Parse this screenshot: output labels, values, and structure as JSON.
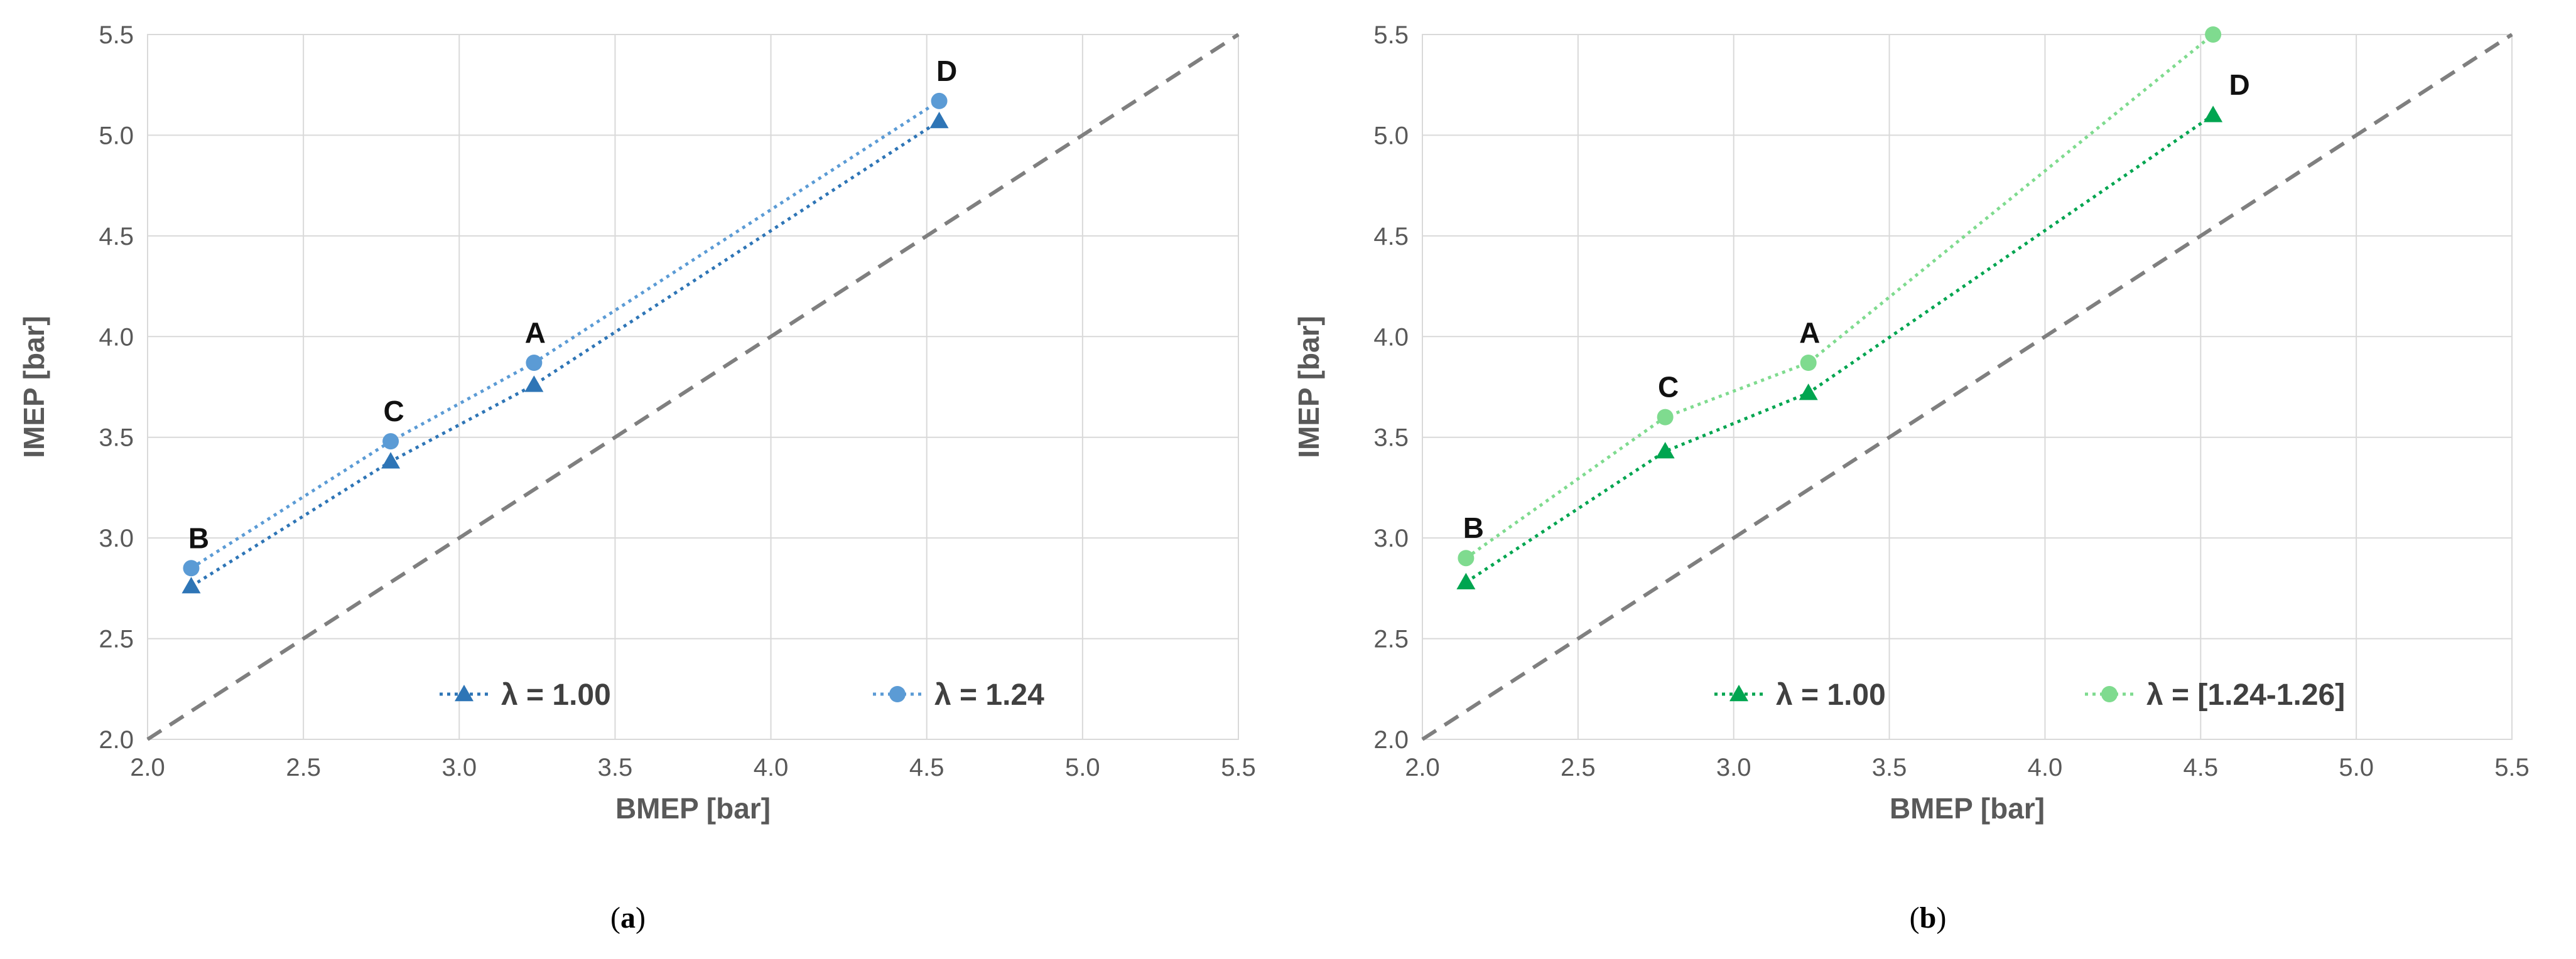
{
  "chart_data": [
    {
      "type": "line",
      "panel_label": "a",
      "xlabel": "BMEP [bar]",
      "ylabel": "IMEP [bar]",
      "xlim": [
        2.0,
        5.5
      ],
      "ylim": [
        2.0,
        5.5
      ],
      "xticks": [
        "2.0",
        "2.5",
        "3.0",
        "3.5",
        "4.0",
        "4.5",
        "5.0",
        "5.5"
      ],
      "yticks": [
        "2.0",
        "2.5",
        "3.0",
        "3.5",
        "4.0",
        "4.5",
        "5.0",
        "5.5"
      ],
      "grid": true,
      "reference_line": "y = x (dashed)",
      "legend_position": "bottom-inside",
      "point_labels": [
        "B",
        "C",
        "A",
        "D"
      ],
      "series": [
        {
          "name": "λ = 1.00",
          "marker": "triangle",
          "color": "#2E75B6",
          "x": [
            2.14,
            2.78,
            3.24,
            4.54
          ],
          "y": [
            2.76,
            3.38,
            3.76,
            5.07
          ]
        },
        {
          "name": "λ = 1.24",
          "marker": "circle",
          "color": "#5B9BD5",
          "x": [
            2.14,
            2.78,
            3.24,
            4.54
          ],
          "y": [
            2.85,
            3.48,
            3.87,
            5.17
          ]
        }
      ]
    },
    {
      "type": "line",
      "panel_label": "b",
      "xlabel": "BMEP [bar]",
      "ylabel": "IMEP [bar]",
      "xlim": [
        2.0,
        5.5
      ],
      "ylim": [
        2.0,
        5.5
      ],
      "xticks": [
        "2.0",
        "2.5",
        "3.0",
        "3.5",
        "4.0",
        "4.5",
        "5.0",
        "5.5"
      ],
      "yticks": [
        "2.0",
        "2.5",
        "3.0",
        "3.5",
        "4.0",
        "4.5",
        "5.0",
        "5.5"
      ],
      "grid": true,
      "reference_line": "y = x (dashed)",
      "legend_position": "bottom-inside",
      "point_labels": [
        "B",
        "C",
        "A",
        "D"
      ],
      "series": [
        {
          "name": "λ = 1.00",
          "marker": "triangle",
          "color": "#00A550",
          "x": [
            2.14,
            2.78,
            3.24,
            4.54
          ],
          "y": [
            2.78,
            3.43,
            3.72,
            5.1
          ]
        },
        {
          "name": "λ = [1.24-1.26]",
          "marker": "circle",
          "color": "#7FDB8F",
          "x": [
            2.14,
            2.78,
            3.24,
            4.54
          ],
          "y": [
            2.9,
            3.6,
            3.87,
            5.5
          ]
        }
      ]
    }
  ]
}
